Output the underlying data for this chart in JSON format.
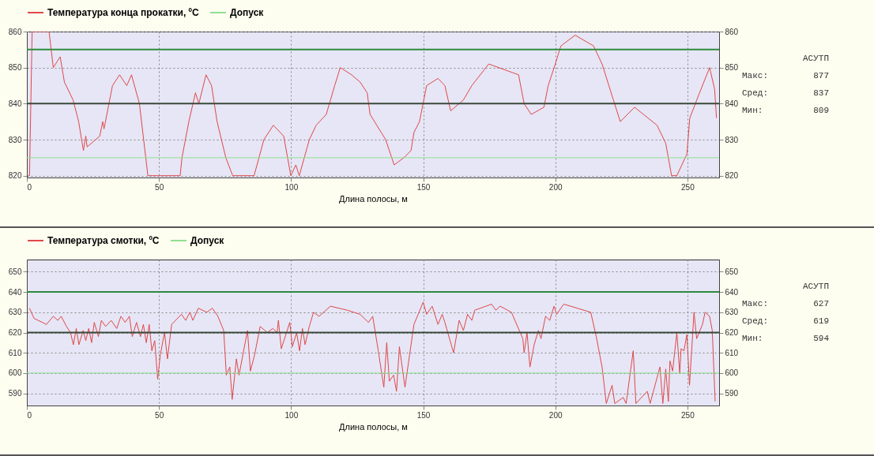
{
  "chart_data": [
    {
      "type": "line",
      "xlabel": "Длина полосы, м",
      "xlim": [
        0,
        262
      ],
      "xticks": [
        0,
        50,
        100,
        150,
        200,
        250
      ],
      "ylim": [
        819.5,
        860
      ],
      "yticks": [
        820,
        830,
        840,
        850,
        860
      ],
      "y2lim": [
        819.5,
        860
      ],
      "y2ticks": [
        820,
        830,
        840,
        850,
        860
      ],
      "grid": true,
      "legend": "top left",
      "line_style": "solid",
      "series": [
        {
          "name": "Температура конца прокатки, ºC",
          "color": "#e04848",
          "x": [
            0.5,
            1,
            2,
            8.4,
            10,
            12.6,
            14.2,
            17.5,
            19.6,
            21.4,
            22.3,
            22.8,
            27.6,
            28.7,
            29.2,
            32.4,
            35.1,
            37.8,
            39.6,
            42.6,
            44.2,
            45.8,
            49.6,
            58,
            58.7,
            61.3,
            63.8,
            65.1,
            67.8,
            69.9,
            72,
            75.3,
            77.9,
            86,
            89.7,
            93.3,
            97.2,
            99.9,
            101.8,
            103.1,
            106.9,
            109.5,
            113.3,
            116.5,
            118.6,
            122.9,
            126.1,
            128.8,
            129.9,
            135.8,
            139,
            142.7,
            145.4,
            146.5,
            148.6,
            151.3,
            155.6,
            158.2,
            160.4,
            165.2,
            168.4,
            174.8,
            186.1,
            188.2,
            190.9,
            195.7,
            197.3,
            200,
            202.1,
            207.5,
            214.5,
            217.7,
            222,
            224.6,
            230,
            238.5,
            241.8,
            244,
            246,
            249.8,
            250.9,
            254.6,
            258.4,
            260.3,
            261
          ],
          "values": [
            820,
            820,
            860,
            860,
            850,
            853,
            846,
            841,
            835,
            827,
            831,
            828,
            831,
            835,
            833,
            845,
            848,
            845,
            848,
            840,
            830,
            820,
            820,
            820,
            825,
            835,
            843,
            840,
            848,
            845,
            835,
            825,
            820,
            820,
            830,
            834,
            831,
            820,
            823,
            820,
            830,
            834,
            837,
            845,
            850,
            848,
            846,
            843,
            837,
            830,
            823,
            825,
            827,
            832,
            835,
            845,
            847,
            845,
            838,
            841,
            845,
            851,
            848,
            840,
            837,
            839,
            845,
            851,
            856,
            859,
            856,
            851,
            841,
            835,
            839,
            834,
            829,
            820,
            820,
            826,
            836,
            843,
            850,
            844,
            836
          ]
        },
        {
          "name": "Допуск",
          "color": "#90e090",
          "x": [
            0,
            262
          ],
          "values": [
            825,
            825
          ]
        }
      ],
      "ref_lines": [
        {
          "axis": "y",
          "value": 855,
          "color": "#2e8b3e"
        },
        {
          "axis": "y",
          "value": 840,
          "color": "#3a4a3a"
        }
      ],
      "annotations": [
        "АСУТП",
        "Макс:",
        "877",
        "Сред:",
        "837",
        "Мин:",
        "809"
      ]
    },
    {
      "type": "line",
      "xlabel": "Длина полосы, м",
      "xlim": [
        0,
        262
      ],
      "xticks": [
        0,
        50,
        100,
        150,
        200,
        250
      ],
      "ylim": [
        584,
        656
      ],
      "yticks": [
        590,
        600,
        610,
        620,
        630,
        640,
        650
      ],
      "y2lim": [
        584,
        656
      ],
      "y2ticks": [
        590,
        600,
        610,
        620,
        630,
        640,
        650
      ],
      "grid": true,
      "legend": "top left",
      "line_style": "solid",
      "series": [
        {
          "name": "Температура смотки, ºC",
          "color": "#e04848",
          "x": [
            1,
            2.7,
            7.4,
            10,
            11.7,
            13,
            15,
            16.5,
            17.6,
            18.7,
            19.7,
            21.3,
            22.3,
            23.4,
            24.5,
            25.5,
            27.1,
            28.2,
            29.8,
            31.9,
            34,
            35.6,
            37.2,
            38.8,
            39.9,
            41.5,
            43,
            44.1,
            45.2,
            46.3,
            47.3,
            48.4,
            49.5,
            50.5,
            52.1,
            53.2,
            54.8,
            58.5,
            60.1,
            61.7,
            62.8,
            64.9,
            68.1,
            70.2,
            72.3,
            74.5,
            75.5,
            76.8,
            77.7,
            79.3,
            80.3,
            83.5,
            84.6,
            86.2,
            88.3,
            91,
            93.1,
            94.7,
            95.2,
            96.3,
            99.5,
            100.5,
            102.1,
            103.2,
            104.3,
            105.3,
            106.9,
            108.5,
            110.6,
            114.9,
            121.3,
            126.1,
            129.3,
            130.9,
            133,
            135.1,
            136.2,
            137.2,
            138.8,
            139.9,
            141,
            143.1,
            146.5,
            148.1,
            150,
            151.3,
            153.4,
            155.6,
            157.2,
            158.2,
            161.5,
            163.6,
            165.2,
            166.8,
            168.4,
            169.5,
            175.9,
            177.5,
            179.1,
            183.4,
            187.7,
            188.2,
            189.3,
            190.4,
            192,
            193.6,
            194.6,
            196.3,
            197.9,
            199.5,
            200.5,
            203.2,
            213.4,
            215.5,
            217.7,
            219.3,
            221.5,
            222.5,
            225.7,
            226.8,
            229.5,
            230.5,
            234.8,
            235.9,
            239.6,
            240.7,
            241.8,
            242.8,
            243.4,
            244.4,
            246,
            247.1,
            247.6,
            248.7,
            249.8,
            250.8,
            252.5,
            253.5,
            255.7,
            256.7,
            258.4,
            259.4,
            260.5
          ],
          "values": [
            632,
            627,
            624,
            628,
            626,
            628,
            623,
            620,
            614,
            622,
            614,
            621,
            616,
            622,
            615,
            625,
            618,
            626,
            623,
            626,
            622,
            628,
            625,
            628,
            618,
            625,
            618,
            624,
            615,
            624,
            611,
            616,
            597,
            609,
            620,
            607,
            624,
            629,
            626,
            630,
            626,
            632,
            630,
            632,
            628,
            621,
            599,
            603,
            587,
            607,
            599,
            621,
            601,
            609,
            623,
            620,
            622,
            620,
            626,
            612,
            625,
            613,
            620,
            611,
            622,
            614,
            623,
            630,
            628,
            633,
            631,
            629,
            625,
            628,
            611,
            593,
            615,
            596,
            599,
            591,
            613,
            593,
            624,
            629,
            635,
            629,
            633,
            624,
            629,
            625,
            610,
            626,
            621,
            629,
            626,
            631,
            634,
            631,
            633,
            630,
            617,
            610,
            620,
            603,
            614,
            621,
            617,
            628,
            626,
            633,
            629,
            634,
            630,
            618,
            603,
            585,
            594,
            585,
            588,
            585,
            611,
            585,
            591,
            585,
            603,
            585,
            602,
            586,
            606,
            601,
            620,
            600,
            612,
            611,
            619,
            594,
            630,
            617,
            624,
            630,
            628,
            621,
            586
          ]
        },
        {
          "name": "Допуск",
          "color": "#90e090",
          "x": [
            0,
            262
          ],
          "values": [
            600,
            600
          ]
        }
      ],
      "ref_lines": [
        {
          "axis": "y",
          "value": 640,
          "color": "#2e8b3e"
        },
        {
          "axis": "y",
          "value": 620,
          "color": "#3a4a3a"
        }
      ],
      "annotations": [
        "АСУТП",
        "Макс:",
        "627",
        "Сред:",
        "619",
        "Мин:",
        "594"
      ]
    }
  ]
}
